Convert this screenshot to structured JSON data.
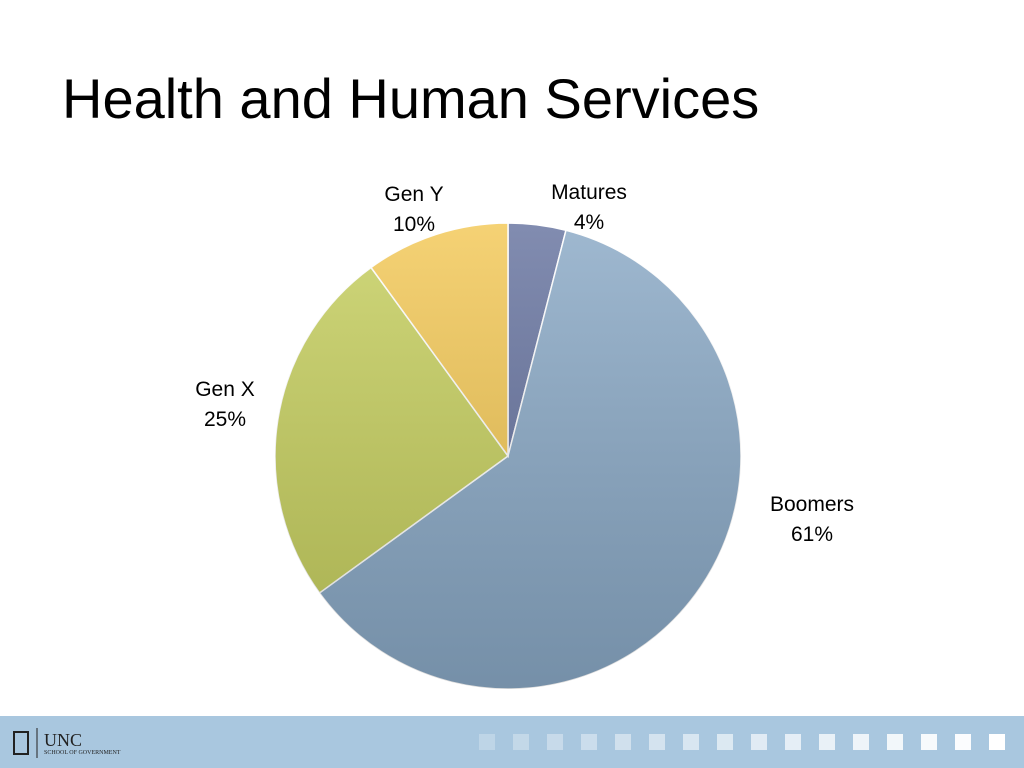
{
  "chart_data": {
    "type": "pie",
    "title": "Health and Human Services",
    "categories": [
      "Matures",
      "Boomers",
      "Gen X",
      "Gen Y"
    ],
    "values": [
      4,
      61,
      25,
      10
    ],
    "value_labels": [
      "4%",
      "61%",
      "25%",
      "10%"
    ],
    "colors": [
      "#66739f",
      "#8aa9c6",
      "#c6cf5e",
      "#f3c856"
    ]
  },
  "footer": {
    "logo": "UNC",
    "subtitle": "SCHOOL OF GOVERNMENT"
  }
}
